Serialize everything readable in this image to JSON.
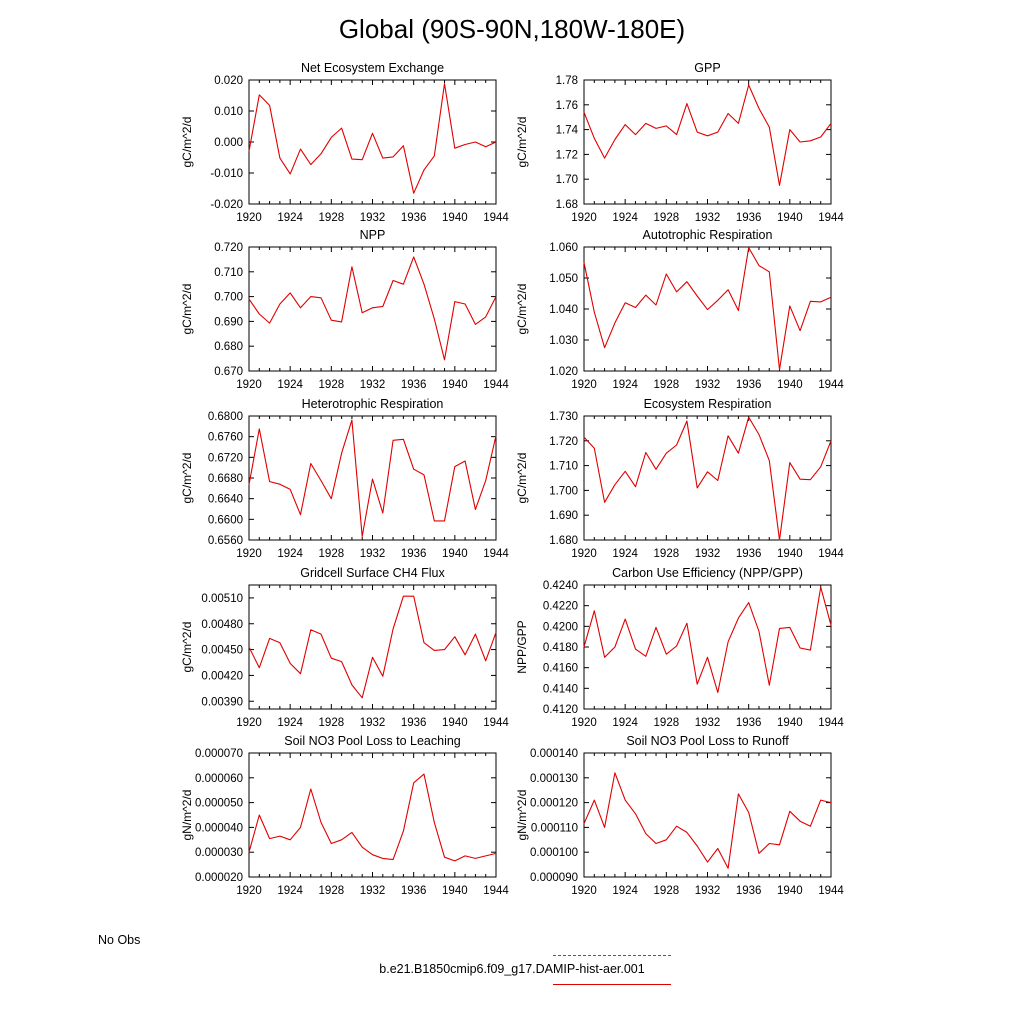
{
  "title": "Global (90S-90N,180W-180E)",
  "legend": {
    "obs_label": "No Obs",
    "obs_color": "#3355dd",
    "model_label": "b.e21.B1850cmip6.f09_g17.DAMIP-hist-aer.001",
    "model_color": "#e00000"
  },
  "chart_data": [
    {
      "type": "line",
      "title": "Net Ecosystem Exchange",
      "ylabel": "gC/m^2/d",
      "ylim": [
        -0.02,
        0.02
      ],
      "yticks": [
        "-0.020",
        "-0.010",
        "0.000",
        "0.010",
        "0.020"
      ],
      "yticks_values": [
        -0.02,
        -0.01,
        0.0,
        0.01,
        0.02
      ],
      "xlim": [
        1920,
        1944
      ],
      "xticks": [
        "1920",
        "1924",
        "1928",
        "1932",
        "1936",
        "1940",
        "1944"
      ],
      "x": [
        1920,
        1921,
        1922,
        1923,
        1924,
        1925,
        1926,
        1927,
        1928,
        1929,
        1930,
        1931,
        1932,
        1933,
        1934,
        1935,
        1936,
        1937,
        1938,
        1939,
        1940,
        1941,
        1942,
        1943,
        1944
      ],
      "values": [
        -0.003,
        0.0152,
        0.0118,
        -0.0052,
        -0.0103,
        -0.0023,
        -0.0073,
        -0.0038,
        0.0015,
        0.0045,
        -0.0055,
        -0.0057,
        0.0028,
        -0.0052,
        -0.0048,
        -0.0012,
        -0.0165,
        -0.009,
        -0.0045,
        0.0188,
        -0.002,
        -0.0008,
        0.0,
        -0.0015,
        0.0
      ]
    },
    {
      "type": "line",
      "title": "GPP",
      "ylabel": "gC/m^2/d",
      "ylim": [
        1.68,
        1.78
      ],
      "yticks": [
        "1.68",
        "1.70",
        "1.72",
        "1.74",
        "1.76",
        "1.78"
      ],
      "yticks_values": [
        1.68,
        1.7,
        1.72,
        1.74,
        1.76,
        1.78
      ],
      "xlim": [
        1920,
        1944
      ],
      "xticks": [
        "1920",
        "1924",
        "1928",
        "1932",
        "1936",
        "1940",
        "1944"
      ],
      "x": [
        1920,
        1921,
        1922,
        1923,
        1924,
        1925,
        1926,
        1927,
        1928,
        1929,
        1930,
        1931,
        1932,
        1933,
        1934,
        1935,
        1936,
        1937,
        1938,
        1939,
        1940,
        1941,
        1942,
        1943,
        1944
      ],
      "values": [
        1.754,
        1.733,
        1.717,
        1.732,
        1.744,
        1.736,
        1.745,
        1.741,
        1.743,
        1.736,
        1.761,
        1.738,
        1.735,
        1.738,
        1.753,
        1.745,
        1.776,
        1.757,
        1.742,
        1.695,
        1.74,
        1.73,
        1.731,
        1.734,
        1.745
      ]
    },
    {
      "type": "line",
      "title": "NPP",
      "ylabel": "gC/m^2/d",
      "ylim": [
        0.67,
        0.72
      ],
      "yticks": [
        "0.670",
        "0.680",
        "0.690",
        "0.700",
        "0.710",
        "0.720"
      ],
      "yticks_values": [
        0.67,
        0.68,
        0.69,
        0.7,
        0.71,
        0.72
      ],
      "xlim": [
        1920,
        1944
      ],
      "xticks": [
        "1920",
        "1924",
        "1928",
        "1932",
        "1936",
        "1940",
        "1944"
      ],
      "x": [
        1920,
        1921,
        1922,
        1923,
        1924,
        1925,
        1926,
        1927,
        1928,
        1929,
        1930,
        1931,
        1932,
        1933,
        1934,
        1935,
        1936,
        1937,
        1938,
        1939,
        1940,
        1941,
        1942,
        1943,
        1944
      ],
      "values": [
        0.699,
        0.693,
        0.6893,
        0.697,
        0.7015,
        0.6955,
        0.7,
        0.6995,
        0.6905,
        0.6898,
        0.712,
        0.6935,
        0.6955,
        0.696,
        0.7065,
        0.705,
        0.716,
        0.705,
        0.691,
        0.6745,
        0.698,
        0.697,
        0.6888,
        0.6918,
        0.7
      ]
    },
    {
      "type": "line",
      "title": "Autotrophic Respiration",
      "ylabel": "gC/m^2/d",
      "ylim": [
        1.02,
        1.06
      ],
      "yticks": [
        "1.020",
        "1.030",
        "1.040",
        "1.050",
        "1.060"
      ],
      "yticks_values": [
        1.02,
        1.03,
        1.04,
        1.05,
        1.06
      ],
      "xlim": [
        1920,
        1944
      ],
      "xticks": [
        "1920",
        "1924",
        "1928",
        "1932",
        "1936",
        "1940",
        "1944"
      ],
      "x": [
        1920,
        1921,
        1922,
        1923,
        1924,
        1925,
        1926,
        1927,
        1928,
        1929,
        1930,
        1931,
        1932,
        1933,
        1934,
        1935,
        1936,
        1937,
        1938,
        1939,
        1940,
        1941,
        1942,
        1943,
        1944
      ],
      "values": [
        1.055,
        1.039,
        1.0275,
        1.0355,
        1.042,
        1.0405,
        1.0445,
        1.0413,
        1.0513,
        1.0455,
        1.0488,
        1.0442,
        1.0398,
        1.0428,
        1.0462,
        1.0395,
        1.0598,
        1.054,
        1.052,
        1.0205,
        1.041,
        1.033,
        1.0425,
        1.0423,
        1.0438
      ]
    },
    {
      "type": "line",
      "title": "Heterotrophic Respiration",
      "ylabel": "gC/m^2/d",
      "ylim": [
        0.656,
        0.68
      ],
      "yticks": [
        "0.6560",
        "0.6600",
        "0.6640",
        "0.6680",
        "0.6720",
        "0.6760",
        "0.6800"
      ],
      "yticks_values": [
        0.656,
        0.66,
        0.664,
        0.668,
        0.672,
        0.676,
        0.68
      ],
      "xlim": [
        1920,
        1944
      ],
      "xticks": [
        "1920",
        "1924",
        "1928",
        "1932",
        "1936",
        "1940",
        "1944"
      ],
      "x": [
        1920,
        1921,
        1922,
        1923,
        1924,
        1925,
        1926,
        1927,
        1928,
        1929,
        1930,
        1931,
        1932,
        1933,
        1934,
        1935,
        1936,
        1937,
        1938,
        1939,
        1940,
        1941,
        1942,
        1943,
        1944
      ],
      "values": [
        0.6667,
        0.6775,
        0.6673,
        0.6668,
        0.6658,
        0.6609,
        0.6708,
        0.6675,
        0.664,
        0.6728,
        0.6792,
        0.6567,
        0.6678,
        0.6612,
        0.6753,
        0.6755,
        0.6697,
        0.6686,
        0.6597,
        0.6597,
        0.6702,
        0.6713,
        0.6619,
        0.6675,
        0.6762
      ]
    },
    {
      "type": "line",
      "title": "Ecosystem Respiration",
      "ylabel": "gC/m^2/d",
      "ylim": [
        1.68,
        1.73
      ],
      "yticks": [
        "1.680",
        "1.690",
        "1.700",
        "1.710",
        "1.720",
        "1.730"
      ],
      "yticks_values": [
        1.68,
        1.69,
        1.7,
        1.71,
        1.72,
        1.73
      ],
      "xlim": [
        1920,
        1944
      ],
      "xticks": [
        "1920",
        "1924",
        "1928",
        "1932",
        "1936",
        "1940",
        "1944"
      ],
      "x": [
        1920,
        1921,
        1922,
        1923,
        1924,
        1925,
        1926,
        1927,
        1928,
        1929,
        1930,
        1931,
        1932,
        1933,
        1934,
        1935,
        1936,
        1937,
        1938,
        1939,
        1940,
        1941,
        1942,
        1943,
        1944
      ],
      "values": [
        1.7215,
        1.717,
        1.6952,
        1.7023,
        1.7077,
        1.7015,
        1.7153,
        1.7085,
        1.715,
        1.7183,
        1.728,
        1.701,
        1.7075,
        1.704,
        1.722,
        1.715,
        1.7295,
        1.7225,
        1.712,
        1.68,
        1.7112,
        1.7045,
        1.7043,
        1.7095,
        1.72
      ]
    },
    {
      "type": "line",
      "title": "Gridcell Surface CH4 Flux",
      "ylabel": "gC/m^2/d",
      "ylim": [
        0.00381,
        0.00525
      ],
      "yticks": [
        "0.00390",
        "0.00420",
        "0.00450",
        "0.00480",
        "0.00510"
      ],
      "yticks_values": [
        0.0039,
        0.0042,
        0.0045,
        0.0048,
        0.0051
      ],
      "xlim": [
        1920,
        1944
      ],
      "xticks": [
        "1920",
        "1924",
        "1928",
        "1932",
        "1936",
        "1940",
        "1944"
      ],
      "x": [
        1920,
        1921,
        1922,
        1923,
        1924,
        1925,
        1926,
        1927,
        1928,
        1929,
        1930,
        1931,
        1932,
        1933,
        1934,
        1935,
        1936,
        1937,
        1938,
        1939,
        1940,
        1941,
        1942,
        1943,
        1944
      ],
      "values": [
        0.00453,
        0.00429,
        0.00463,
        0.00458,
        0.00434,
        0.00422,
        0.00473,
        0.00468,
        0.0044,
        0.00436,
        0.00409,
        0.00394,
        0.00441,
        0.00419,
        0.00474,
        0.00512,
        0.00512,
        0.00458,
        0.00449,
        0.0045,
        0.00465,
        0.00444,
        0.00468,
        0.00437,
        0.0047
      ]
    },
    {
      "type": "line",
      "title": "Carbon Use Efficiency (NPP/GPP)",
      "ylabel": "NPP/GPP",
      "ylim": [
        0.412,
        0.424
      ],
      "yticks": [
        "0.4120",
        "0.4140",
        "0.4160",
        "0.4180",
        "0.4200",
        "0.4220",
        "0.4240"
      ],
      "yticks_values": [
        0.412,
        0.414,
        0.416,
        0.418,
        0.42,
        0.422,
        0.424
      ],
      "xlim": [
        1920,
        1944
      ],
      "xticks": [
        "1920",
        "1924",
        "1928",
        "1932",
        "1936",
        "1940",
        "1944"
      ],
      "x": [
        1920,
        1921,
        1922,
        1923,
        1924,
        1925,
        1926,
        1927,
        1928,
        1929,
        1930,
        1931,
        1932,
        1933,
        1934,
        1935,
        1936,
        1937,
        1938,
        1939,
        1940,
        1941,
        1942,
        1943,
        1944
      ],
      "values": [
        0.418,
        0.4215,
        0.417,
        0.418,
        0.4207,
        0.4178,
        0.4171,
        0.4199,
        0.4173,
        0.4181,
        0.4203,
        0.4144,
        0.417,
        0.4136,
        0.4185,
        0.4208,
        0.4223,
        0.4195,
        0.4143,
        0.4198,
        0.4199,
        0.4179,
        0.4177,
        0.4238,
        0.4201
      ]
    },
    {
      "type": "line",
      "title": "Soil NO3 Pool Loss to Leaching",
      "ylabel": "gN/m^2/d",
      "ylim": [
        2e-05,
        7e-05
      ],
      "yticks": [
        "0.000020",
        "0.000030",
        "0.000040",
        "0.000050",
        "0.000060",
        "0.000070"
      ],
      "yticks_values": [
        2e-05,
        3e-05,
        4e-05,
        5e-05,
        6e-05,
        7e-05
      ],
      "xlim": [
        1920,
        1944
      ],
      "xticks": [
        "1920",
        "1924",
        "1928",
        "1932",
        "1936",
        "1940",
        "1944"
      ],
      "x": [
        1920,
        1921,
        1922,
        1923,
        1924,
        1925,
        1926,
        1927,
        1928,
        1929,
        1930,
        1931,
        1932,
        1933,
        1934,
        1935,
        1936,
        1937,
        1938,
        1939,
        1940,
        1941,
        1942,
        1943,
        1944
      ],
      "values": [
        3e-05,
        4.5e-05,
        3.55e-05,
        3.65e-05,
        3.5e-05,
        4e-05,
        5.55e-05,
        4.2e-05,
        3.35e-05,
        3.5e-05,
        3.8e-05,
        3.2e-05,
        2.9e-05,
        2.75e-05,
        2.7e-05,
        3.85e-05,
        5.8e-05,
        6.15e-05,
        4.2e-05,
        2.8e-05,
        2.65e-05,
        2.85e-05,
        2.75e-05,
        2.85e-05,
        2.95e-05
      ]
    },
    {
      "type": "line",
      "title": "Soil NO3 Pool Loss to Runoff",
      "ylabel": "gN/m^2/d",
      "ylim": [
        9e-05,
        0.00014
      ],
      "yticks": [
        "0.000090",
        "0.000100",
        "0.000110",
        "0.000120",
        "0.000130",
        "0.000140"
      ],
      "yticks_values": [
        9e-05,
        0.0001,
        0.00011,
        0.00012,
        0.00013,
        0.00014
      ],
      "xlim": [
        1920,
        1944
      ],
      "xticks": [
        "1920",
        "1924",
        "1928",
        "1932",
        "1936",
        "1940",
        "1944"
      ],
      "x": [
        1920,
        1921,
        1922,
        1923,
        1924,
        1925,
        1926,
        1927,
        1928,
        1929,
        1930,
        1931,
        1932,
        1933,
        1934,
        1935,
        1936,
        1937,
        1938,
        1939,
        1940,
        1941,
        1942,
        1943,
        1944
      ],
      "values": [
        0.0001115,
        0.000121,
        0.00011,
        0.000132,
        0.000121,
        0.0001155,
        0.0001075,
        0.0001035,
        0.000105,
        0.0001105,
        0.000108,
        0.0001025,
        9.6e-05,
        0.0001015,
        9.35e-05,
        0.0001235,
        0.000116,
        9.95e-05,
        0.0001035,
        0.000103,
        0.0001165,
        0.0001125,
        0.0001105,
        0.000121,
        0.00012
      ]
    }
  ]
}
